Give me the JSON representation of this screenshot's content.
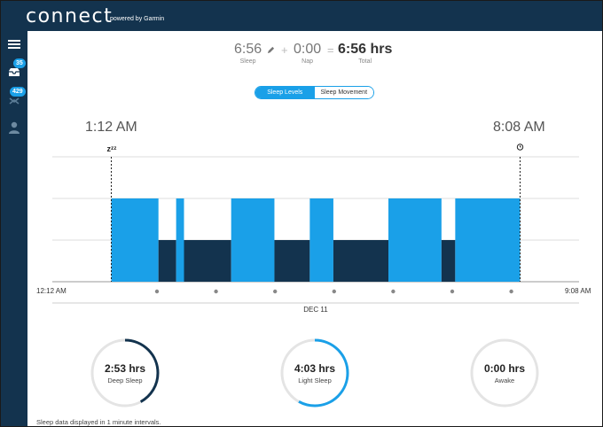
{
  "app": {
    "logo": "connect",
    "powered_by": "powered by Garmin"
  },
  "sidebar": {
    "items": [
      {
        "icon": "menu-icon"
      },
      {
        "icon": "inbox-icon",
        "badge": "35"
      },
      {
        "icon": "challenges-icon",
        "badge": "429"
      },
      {
        "icon": "profile-icon"
      }
    ]
  },
  "summary": {
    "sleep_value": "6:56",
    "sleep_label": "Sleep",
    "plus": "+",
    "nap_value": "0:00",
    "nap_label": "Nap",
    "equals": "=",
    "total_value": "6:56 hrs",
    "total_label": "Total"
  },
  "tabs": {
    "sleep_levels": "Sleep Levels",
    "sleep_movement": "Sleep Movement"
  },
  "times": {
    "sleep_start": "1:12 AM",
    "sleep_end": "8:08 AM",
    "axis_start": "12:12 AM",
    "axis_end": "9:08 AM",
    "date": "DEC 11"
  },
  "colors": {
    "light": "#1aa0e8",
    "deep": "#13334e",
    "grid": "#dddddd"
  },
  "chart_data": {
    "type": "area",
    "levels": [
      "deep",
      "light",
      "awake"
    ],
    "x_range": [
      "12:12 AM",
      "9:08 AM"
    ],
    "sleep_start": "1:12 AM",
    "sleep_end": "8:08 AM",
    "segments": [
      {
        "start": "1:12 AM",
        "end": "2:00 AM",
        "level": "light"
      },
      {
        "start": "2:00 AM",
        "end": "2:18 AM",
        "level": "deep"
      },
      {
        "start": "2:18 AM",
        "end": "2:26 AM",
        "level": "light"
      },
      {
        "start": "2:26 AM",
        "end": "3:14 AM",
        "level": "deep"
      },
      {
        "start": "3:14 AM",
        "end": "3:58 AM",
        "level": "light"
      },
      {
        "start": "3:58 AM",
        "end": "4:34 AM",
        "level": "deep"
      },
      {
        "start": "4:34 AM",
        "end": "4:58 AM",
        "level": "light"
      },
      {
        "start": "4:58 AM",
        "end": "5:54 AM",
        "level": "deep"
      },
      {
        "start": "5:54 AM",
        "end": "6:48 AM",
        "level": "light"
      },
      {
        "start": "6:48 AM",
        "end": "7:02 AM",
        "level": "deep"
      },
      {
        "start": "7:02 AM",
        "end": "8:08 AM",
        "level": "light"
      }
    ]
  },
  "rings": [
    {
      "value": "2:53 hrs",
      "label": "Deep Sleep",
      "fraction": 0.42,
      "color": "#13334e"
    },
    {
      "value": "4:03 hrs",
      "label": "Light Sleep",
      "fraction": 0.58,
      "color": "#1aa0e8"
    },
    {
      "value": "0:00 hrs",
      "label": "Awake",
      "fraction": 0,
      "color": "#1aa0e8"
    }
  ],
  "footnote": "Sleep data displayed in 1 minute intervals."
}
